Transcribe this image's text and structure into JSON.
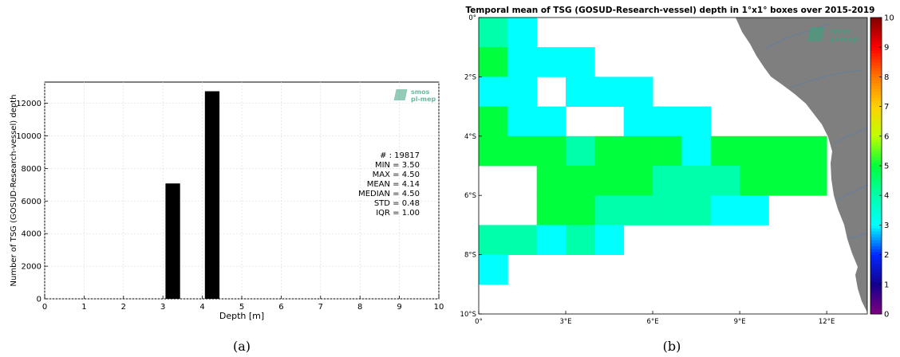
{
  "colors": {
    "bar": "#000000",
    "grid": "#e0e0e0",
    "land": "#7f7f7f",
    "river": "#5a7fa8",
    "logo": "#3aa17e"
  },
  "logo": {
    "line1": "smos",
    "line2": "pi-mep"
  },
  "panels": [
    {
      "label": "(a)",
      "chart_data": {
        "type": "bar",
        "title": "",
        "xlabel": "Depth [m]",
        "ylabel": "Number of TSG (GOSUD-Research-vessel) depth",
        "xlim": [
          0,
          10
        ],
        "ylim": [
          0,
          13300
        ],
        "xticks": [
          0,
          1,
          2,
          3,
          4,
          5,
          6,
          7,
          8,
          9,
          10
        ],
        "yticks": [
          0,
          2000,
          4000,
          6000,
          8000,
          10000,
          12000
        ],
        "bar_width": 0.37,
        "x": [
          3.25,
          4.25
        ],
        "values": [
          7080,
          12737
        ],
        "grid": true,
        "stats": [
          "# : 19817",
          "MIN = 3.50",
          "MAX = 4.50",
          "MEAN = 4.14",
          "MEDIAN = 4.50",
          "STD = 0.48",
          "IQR = 1.00"
        ]
      }
    },
    {
      "label": "(b)",
      "chart_data": {
        "type": "heatmap",
        "title": "Temporal mean of TSG (GOSUD-Research-vessel) depth in 1°x1° boxes over 2015-2019",
        "lon_range": [
          0,
          13.4
        ],
        "lat_range": [
          -10,
          0
        ],
        "xticks": [
          0,
          3,
          6,
          9,
          12
        ],
        "xtick_labels": [
          "0°",
          "3°E",
          "6°E",
          "9°E",
          "12°E"
        ],
        "yticks": [
          0,
          -2,
          -4,
          -6,
          -8,
          -10
        ],
        "ytick_labels": [
          "0°",
          "2°S",
          "4°S",
          "6°S",
          "8°S",
          "10°S"
        ],
        "colorbar": {
          "min": 0,
          "max": 10,
          "ticks": [
            "0",
            "1",
            "2",
            "3",
            "4",
            "5",
            "6",
            "7",
            "8",
            "9",
            "10"
          ]
        },
        "cells": [
          [
            0,
            0,
            4
          ],
          [
            1,
            0,
            3
          ],
          [
            0,
            1,
            5
          ],
          [
            1,
            1,
            3
          ],
          [
            2,
            1,
            3
          ],
          [
            3,
            1,
            3
          ],
          [
            0,
            2,
            3
          ],
          [
            1,
            2,
            3
          ],
          [
            3,
            2,
            3
          ],
          [
            4,
            2,
            3
          ],
          [
            5,
            2,
            3
          ],
          [
            0,
            3,
            5
          ],
          [
            1,
            3,
            3
          ],
          [
            2,
            3,
            3
          ],
          [
            5,
            3,
            3
          ],
          [
            6,
            3,
            3
          ],
          [
            7,
            3,
            3
          ],
          [
            0,
            4,
            5
          ],
          [
            1,
            4,
            5
          ],
          [
            2,
            4,
            5
          ],
          [
            3,
            4,
            4
          ],
          [
            4,
            4,
            5
          ],
          [
            5,
            4,
            5
          ],
          [
            6,
            4,
            5
          ],
          [
            7,
            4,
            3
          ],
          [
            8,
            4,
            5
          ],
          [
            9,
            4,
            5
          ],
          [
            10,
            4,
            5
          ],
          [
            11,
            4,
            5
          ],
          [
            2,
            5,
            5
          ],
          [
            3,
            5,
            5
          ],
          [
            4,
            5,
            5
          ],
          [
            5,
            5,
            5
          ],
          [
            6,
            5,
            4
          ],
          [
            7,
            5,
            4
          ],
          [
            8,
            5,
            4
          ],
          [
            9,
            5,
            5
          ],
          [
            10,
            5,
            5
          ],
          [
            11,
            5,
            5
          ],
          [
            2,
            6,
            5
          ],
          [
            3,
            6,
            5
          ],
          [
            4,
            6,
            4
          ],
          [
            5,
            6,
            4
          ],
          [
            6,
            6,
            4
          ],
          [
            7,
            6,
            4
          ],
          [
            8,
            6,
            3
          ],
          [
            9,
            6,
            3
          ],
          [
            0,
            7,
            4
          ],
          [
            1,
            7,
            4
          ],
          [
            2,
            7,
            3
          ],
          [
            3,
            7,
            4
          ],
          [
            4,
            7,
            3
          ],
          [
            0,
            8,
            3
          ]
        ]
      }
    }
  ]
}
